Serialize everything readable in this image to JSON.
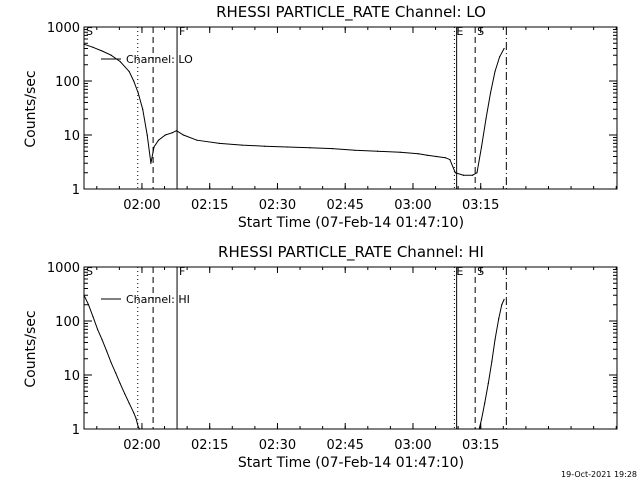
{
  "footer": {
    "timestamp": "19-Oct-2021 19:28"
  },
  "chart_data": [
    {
      "type": "line",
      "title": "RHESSI PARTICLE_RATE Channel: LO",
      "xlabel": "Start Time (07-Feb-14 01:47:10)",
      "ylabel": "Counts/sec",
      "x_unit": "minutes after 01:47:10",
      "xlim": [
        0,
        118
      ],
      "ylim": [
        1,
        1000
      ],
      "yscale": "log",
      "grid": false,
      "x_ticks": [
        {
          "x": 12.83,
          "label": "02:00"
        },
        {
          "x": 27.83,
          "label": "02:15"
        },
        {
          "x": 42.83,
          "label": "02:30"
        },
        {
          "x": 57.83,
          "label": "02:45"
        },
        {
          "x": 72.83,
          "label": "03:00"
        },
        {
          "x": 87.83,
          "label": "03:15"
        }
      ],
      "y_ticks": [
        {
          "y": 1,
          "label": "1"
        },
        {
          "y": 10,
          "label": "10"
        },
        {
          "y": 100,
          "label": "100"
        },
        {
          "y": 1000,
          "label": "1000"
        }
      ],
      "legend": {
        "label": "Channel: LO",
        "placement": "top-left"
      },
      "vlines": [
        {
          "x": 11.9,
          "style": "dotted",
          "label": ""
        },
        {
          "x": 15.3,
          "style": "dashed",
          "label": ""
        },
        {
          "x": 20.6,
          "style": "solid",
          "label": "F"
        },
        {
          "x": 82.0,
          "style": "dotted",
          "label": "E"
        },
        {
          "x": 82.5,
          "style": "solid",
          "label": ""
        },
        {
          "x": 86.6,
          "style": "dashed",
          "label": "S"
        },
        {
          "x": 93.5,
          "style": "dashdot",
          "label": ""
        }
      ],
      "corner_labels": [
        "S"
      ],
      "series": [
        {
          "name": "Channel: LO",
          "x": [
            0,
            2,
            4,
            6,
            8,
            10,
            11,
            12,
            13,
            14,
            14.8,
            15.5,
            16.5,
            18,
            19.5,
            20.5,
            22,
            25,
            30,
            35,
            40,
            45,
            50,
            55,
            60,
            65,
            70,
            74,
            76,
            78,
            80,
            81,
            82.2,
            84,
            86,
            87,
            88,
            89,
            90,
            91,
            92,
            93
          ],
          "y": [
            480,
            420,
            360,
            300,
            230,
            150,
            100,
            60,
            30,
            10,
            3,
            6,
            8,
            10,
            11,
            12,
            10,
            8,
            7,
            6.5,
            6.2,
            6,
            5.8,
            5.6,
            5.2,
            5,
            4.8,
            4.5,
            4.2,
            4,
            3.8,
            3.5,
            2,
            1.8,
            1.8,
            2,
            6,
            20,
            60,
            150,
            280,
            400
          ]
        }
      ]
    },
    {
      "type": "line",
      "title": "RHESSI PARTICLE_RATE Channel: HI",
      "xlabel": "Start Time (07-Feb-14 01:47:10)",
      "ylabel": "Counts/sec",
      "x_unit": "minutes after 01:47:10",
      "xlim": [
        0,
        118
      ],
      "ylim": [
        1,
        1000
      ],
      "yscale": "log",
      "grid": false,
      "x_ticks": [
        {
          "x": 12.83,
          "label": "02:00"
        },
        {
          "x": 27.83,
          "label": "02:15"
        },
        {
          "x": 42.83,
          "label": "02:30"
        },
        {
          "x": 57.83,
          "label": "02:45"
        },
        {
          "x": 72.83,
          "label": "03:00"
        },
        {
          "x": 87.83,
          "label": "03:15"
        }
      ],
      "y_ticks": [
        {
          "y": 1,
          "label": "1"
        },
        {
          "y": 10,
          "label": "10"
        },
        {
          "y": 100,
          "label": "100"
        },
        {
          "y": 1000,
          "label": "1000"
        }
      ],
      "legend": {
        "label": "Channel: HI",
        "placement": "top-left"
      },
      "vlines": [
        {
          "x": 11.9,
          "style": "dotted",
          "label": ""
        },
        {
          "x": 15.3,
          "style": "dashed",
          "label": ""
        },
        {
          "x": 20.6,
          "style": "solid",
          "label": "F"
        },
        {
          "x": 82.0,
          "style": "dotted",
          "label": "E"
        },
        {
          "x": 82.5,
          "style": "solid",
          "label": ""
        },
        {
          "x": 86.6,
          "style": "dashed",
          "label": "S"
        },
        {
          "x": 93.5,
          "style": "dashdot",
          "label": ""
        }
      ],
      "corner_labels": [
        "S"
      ],
      "series": [
        {
          "name": "Channel: HI",
          "x": [
            0,
            1,
            2,
            3,
            4,
            5,
            6,
            7,
            8,
            9,
            10,
            11,
            11.5,
            12,
            12.3,
            87.5,
            88,
            88.7,
            89.5,
            90.3,
            91,
            91.8,
            92.5,
            93
          ],
          "y": [
            300,
            200,
            120,
            70,
            45,
            28,
            17,
            11,
            7,
            4.5,
            3,
            2,
            1.6,
            1.1,
            1,
            1,
            1.5,
            3,
            7,
            18,
            45,
            110,
            200,
            250
          ]
        }
      ]
    }
  ]
}
